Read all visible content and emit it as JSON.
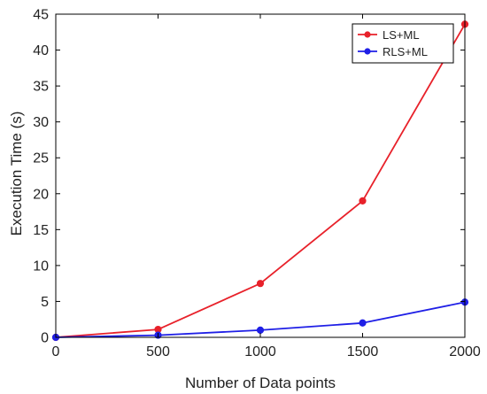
{
  "chart_data": {
    "type": "line",
    "title": "",
    "xlabel": "Number of Data points",
    "ylabel": "Execution Time (s)",
    "xlim": [
      0,
      2000
    ],
    "ylim": [
      0,
      45
    ],
    "xticks": [
      0,
      500,
      1000,
      1500,
      2000
    ],
    "yticks": [
      0,
      5,
      10,
      15,
      20,
      25,
      30,
      35,
      40,
      45
    ],
    "grid": false,
    "legend": "top-right",
    "x": [
      0,
      500,
      1000,
      1500,
      2000
    ],
    "series": [
      {
        "name": "LS+ML",
        "color": "#e8212a",
        "values": [
          0,
          1.1,
          7.5,
          19.0,
          43.6
        ]
      },
      {
        "name": "RLS+ML",
        "color": "#1f1fe6",
        "values": [
          0,
          0.3,
          1.0,
          2.0,
          4.9
        ]
      }
    ]
  }
}
